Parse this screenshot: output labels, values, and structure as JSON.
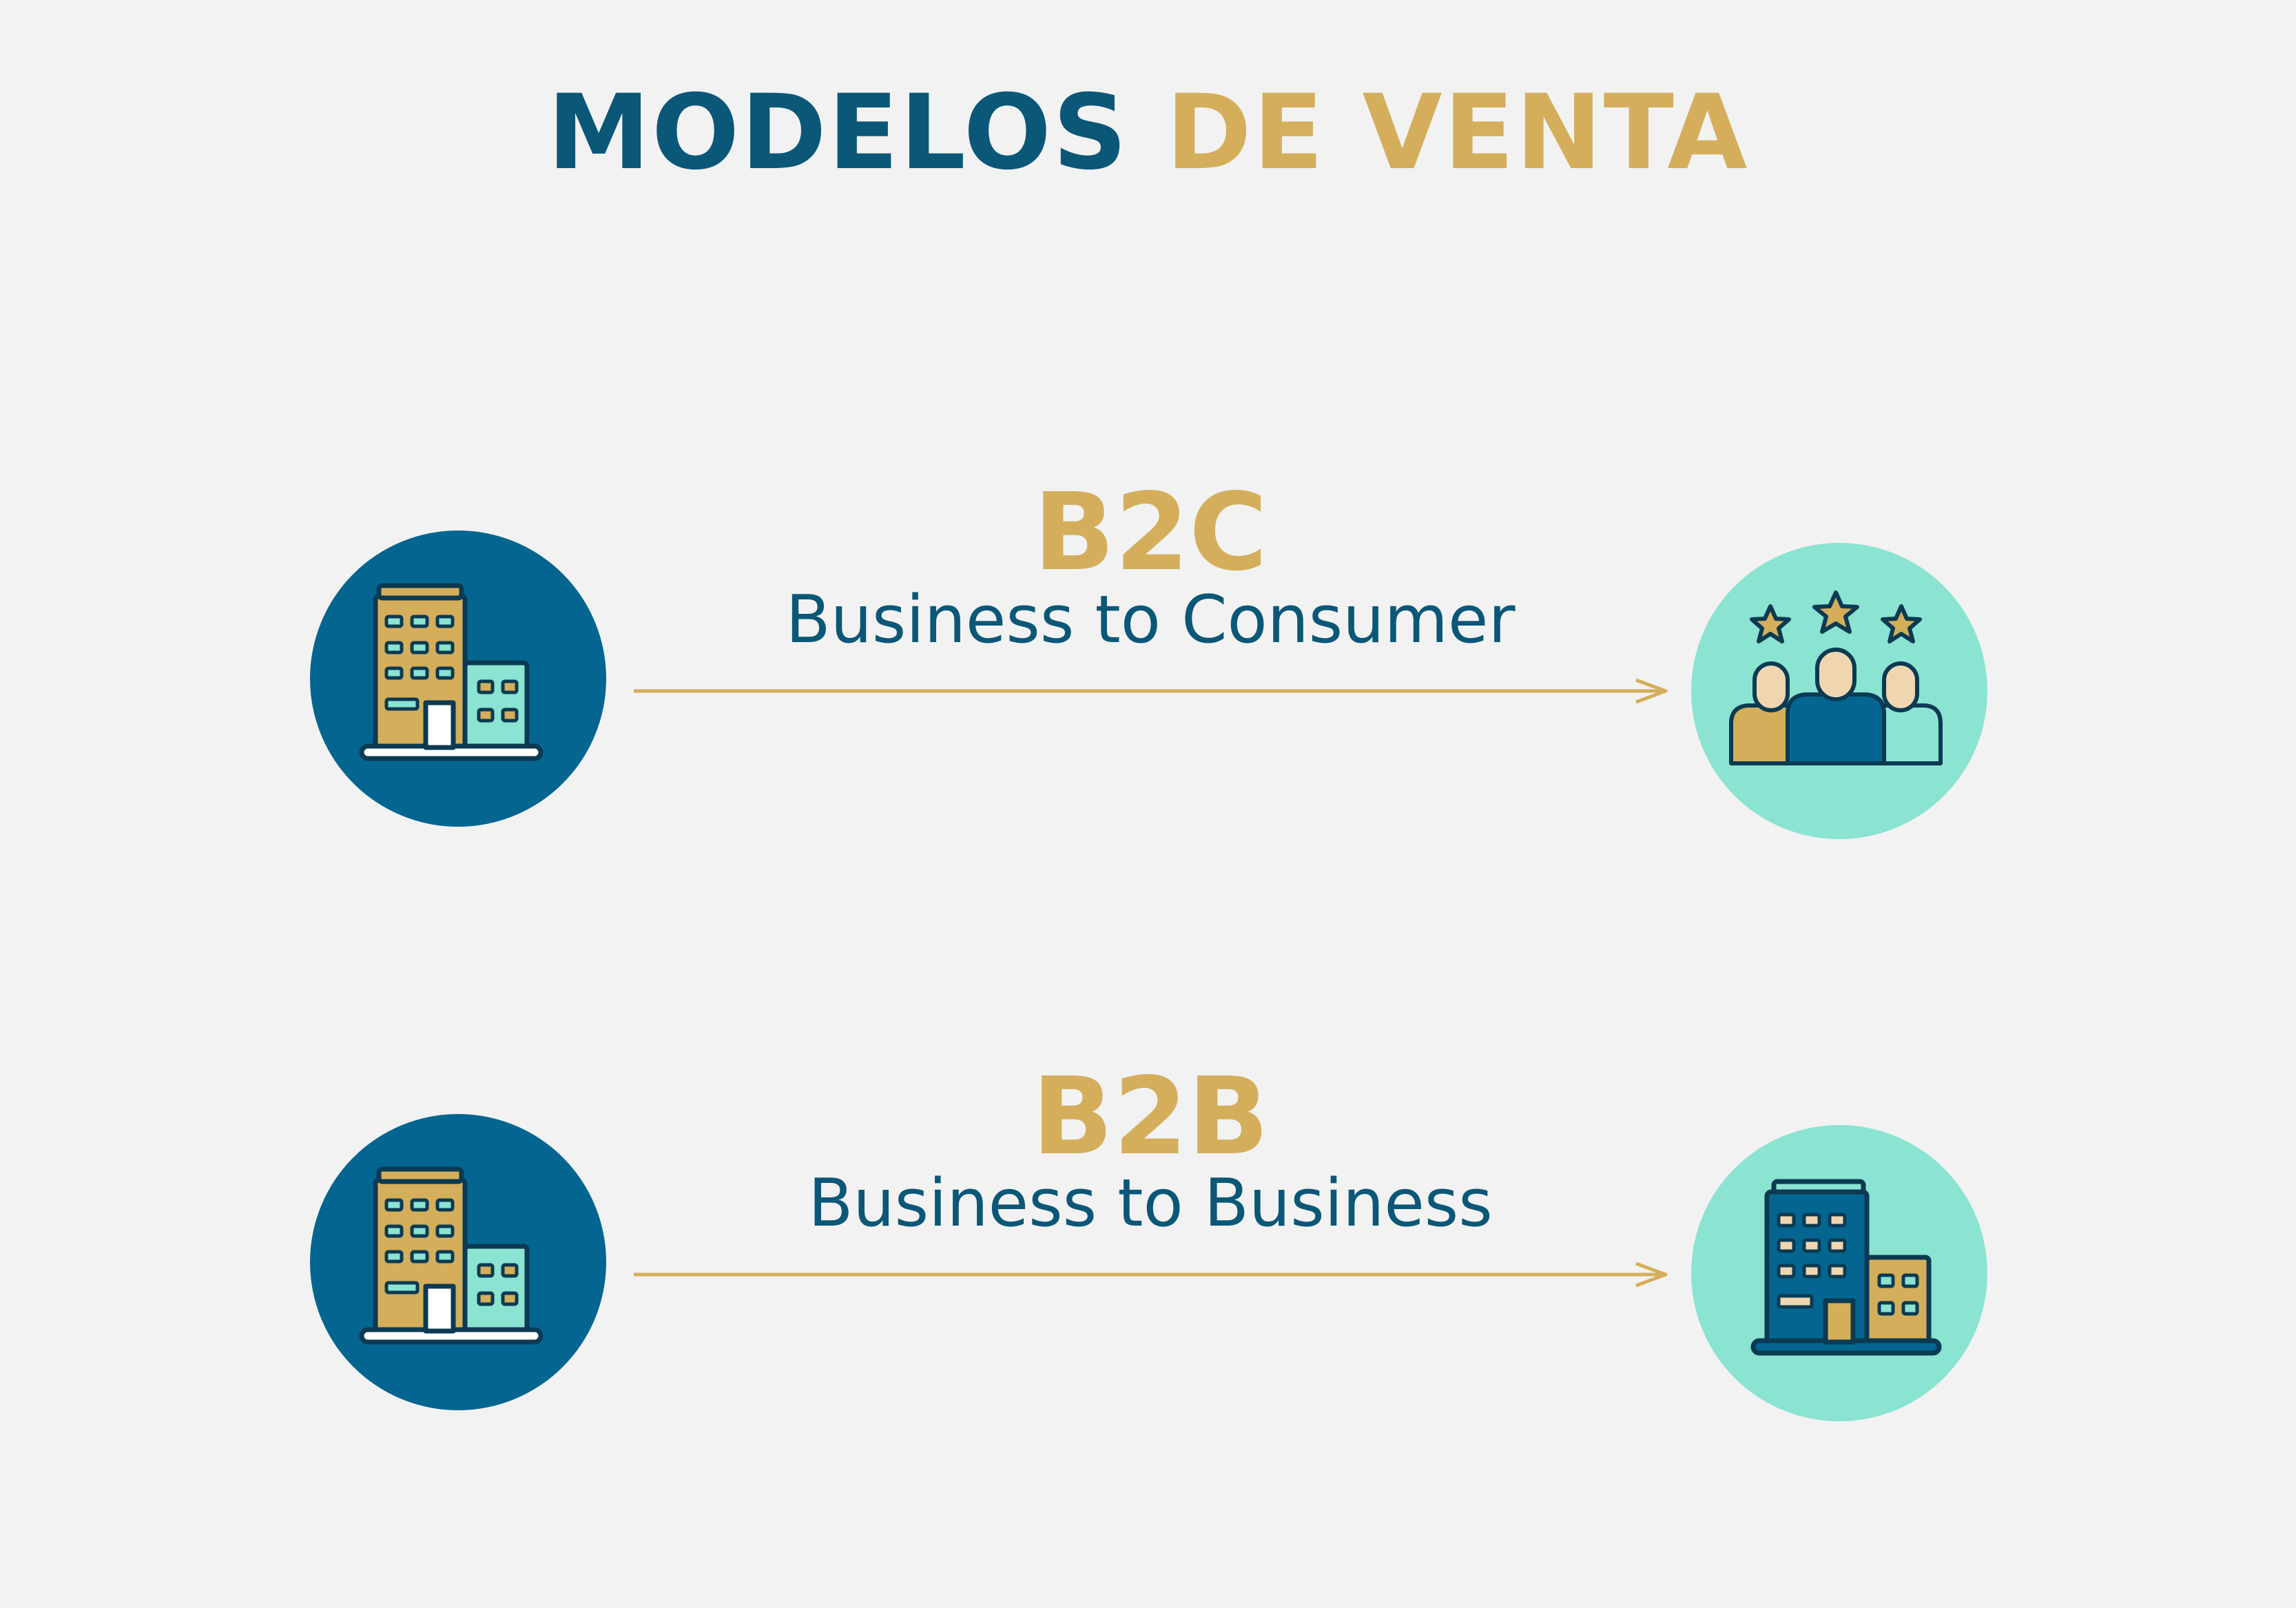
{
  "title": {
    "part1": "MODELOS",
    "part2": "DE VENTA"
  },
  "models": [
    {
      "code": "B2C",
      "full": "Business to Consumer",
      "from_icon": "business-buildings-icon",
      "to_icon": "rated-customers-icon"
    },
    {
      "code": "B2B",
      "full": "Business to Business",
      "from_icon": "business-buildings-icon",
      "to_icon": "office-buildings-icon"
    }
  ],
  "colors": {
    "navy": "#0b5777",
    "gold": "#d4ae5b",
    "teal": "#8be3d2",
    "background": "#f2f2f2"
  }
}
